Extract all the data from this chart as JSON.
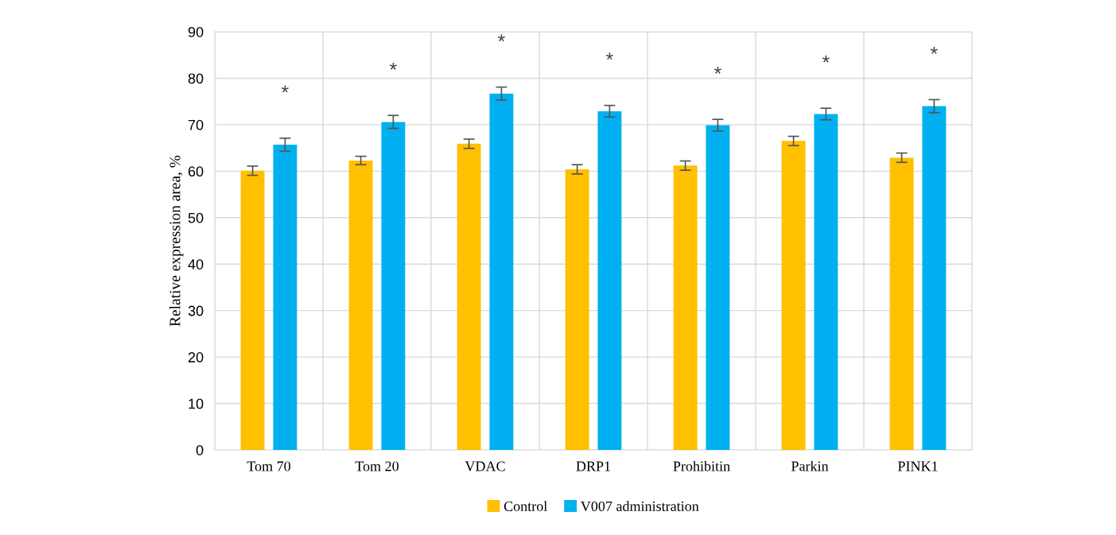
{
  "chart_data": {
    "type": "bar",
    "ylabel": "Relative expression area, %",
    "categories": [
      "Tom 70",
      "Tom 20",
      "VDAC",
      "DRP1",
      "Prohibitin",
      "Parkin",
      "PINK1"
    ],
    "series": [
      {
        "name": "Control",
        "color": "#ffc000",
        "values": [
          60.1,
          62.3,
          65.9,
          60.4,
          61.2,
          66.5,
          62.9
        ],
        "errors": [
          1.0,
          0.9,
          1.0,
          1.0,
          1.0,
          1.0,
          1.0
        ]
      },
      {
        "name": "V007 administration",
        "color": "#00b0f0",
        "values": [
          65.7,
          70.6,
          76.7,
          72.9,
          69.9,
          72.3,
          74.0
        ],
        "errors": [
          1.4,
          1.4,
          1.4,
          1.25,
          1.25,
          1.25,
          1.4
        ]
      }
    ],
    "ylim": [
      0,
      90
    ],
    "yticks": [
      0,
      10,
      20,
      30,
      40,
      50,
      60,
      70,
      80,
      90
    ],
    "grid": true,
    "legend": "bottom",
    "annotations": [
      "*",
      "*",
      "*",
      "*",
      "*",
      "*",
      "*"
    ]
  }
}
